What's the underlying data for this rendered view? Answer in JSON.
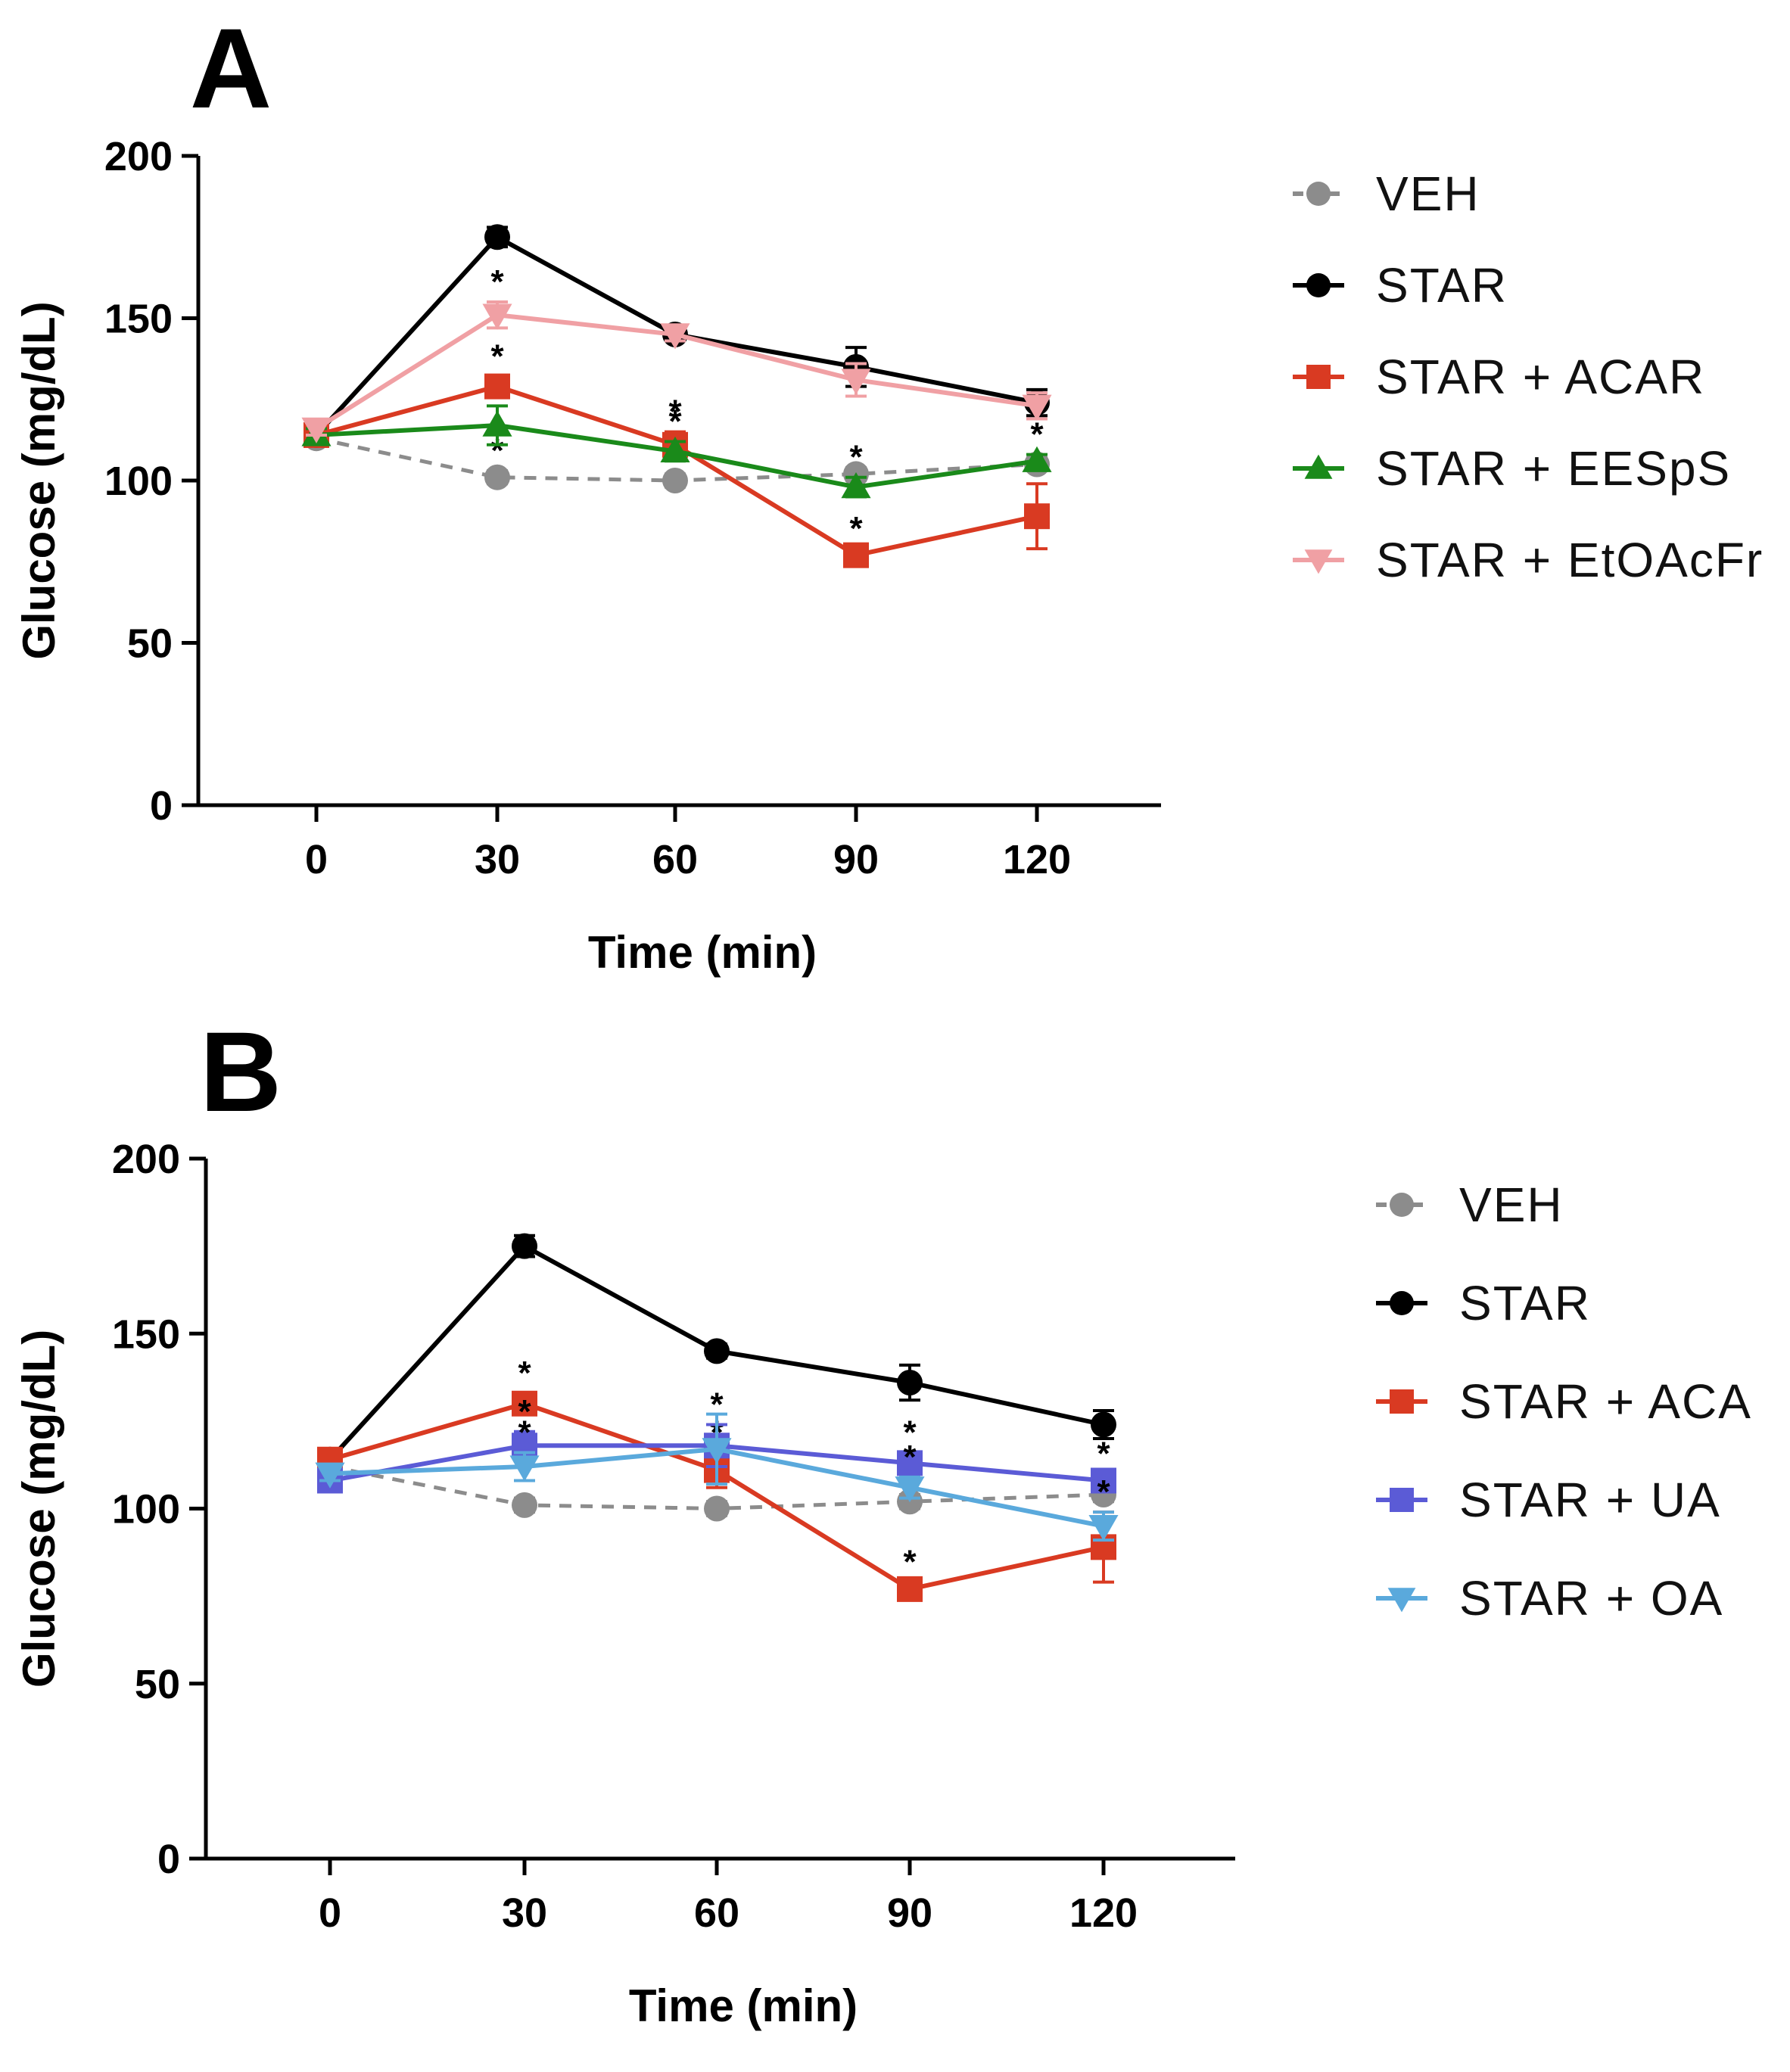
{
  "chart_data": [
    {
      "type": "line",
      "panel": "A",
      "xlabel": "Time (min)",
      "ylabel": "Glucose (mg/dL)",
      "x": [
        0,
        30,
        60,
        90,
        120
      ],
      "x_ticks": [
        "0",
        "30",
        "60",
        "90",
        "120"
      ],
      "ylim": [
        0,
        200
      ],
      "y_ticks": [
        "0",
        "50",
        "100",
        "150",
        "200"
      ],
      "legend_position": "right",
      "series": [
        {
          "name": "VEH",
          "color": "#8c8c8c",
          "marker": "circle",
          "dashed": true,
          "values": [
            113,
            101,
            100,
            102,
            105
          ],
          "errors": [
            2,
            2,
            2,
            2,
            2
          ],
          "stars": [
            false,
            true,
            false,
            false,
            false
          ]
        },
        {
          "name": "STAR",
          "color": "#000000",
          "marker": "circle",
          "dashed": false,
          "values": [
            114,
            175,
            145,
            135,
            124
          ],
          "errors": [
            2,
            3,
            2,
            6,
            4
          ],
          "stars": [
            false,
            false,
            false,
            false,
            false
          ]
        },
        {
          "name": "STAR + ACAR",
          "color": "#d93a22",
          "marker": "square",
          "dashed": false,
          "values": [
            114,
            129,
            111,
            77,
            89
          ],
          "errors": [
            2,
            3,
            4,
            2,
            10
          ],
          "stars": [
            false,
            true,
            true,
            true,
            true
          ]
        },
        {
          "name": "STAR + EESpS",
          "color": "#1a8a1a",
          "marker": "triangle-up",
          "dashed": false,
          "values": [
            114,
            117,
            109,
            98,
            106
          ],
          "errors": [
            2,
            6,
            3,
            3,
            2
          ],
          "stars": [
            false,
            false,
            true,
            true,
            true
          ]
        },
        {
          "name": "STAR + EtOAcFr",
          "color": "#f0a0a4",
          "marker": "triangle-down",
          "dashed": false,
          "values": [
            116,
            151,
            145,
            131,
            123
          ],
          "errors": [
            2,
            4,
            2,
            5,
            4
          ],
          "stars": [
            false,
            true,
            false,
            false,
            false
          ]
        }
      ]
    },
    {
      "type": "line",
      "panel": "B",
      "xlabel": "Time (min)",
      "ylabel": "Glucose (mg/dL)",
      "x": [
        0,
        30,
        60,
        90,
        120
      ],
      "x_ticks": [
        "0",
        "30",
        "60",
        "90",
        "120"
      ],
      "ylim": [
        0,
        200
      ],
      "y_ticks": [
        "0",
        "50",
        "100",
        "150",
        "200"
      ],
      "legend_position": "right",
      "series": [
        {
          "name": "VEH",
          "color": "#8c8c8c",
          "marker": "circle",
          "dashed": true,
          "values": [
            112,
            101,
            100,
            102,
            104
          ],
          "errors": [
            2,
            2,
            2,
            2,
            2
          ],
          "stars": [
            false,
            false,
            false,
            false,
            false
          ]
        },
        {
          "name": "STAR",
          "color": "#000000",
          "marker": "circle",
          "dashed": false,
          "values": [
            114,
            175,
            145,
            136,
            124
          ],
          "errors": [
            2,
            3,
            2,
            5,
            4
          ],
          "stars": [
            false,
            false,
            false,
            false,
            false
          ]
        },
        {
          "name": "STAR + ACA",
          "color": "#d93a22",
          "marker": "square",
          "dashed": false,
          "values": [
            114,
            130,
            111,
            77,
            89
          ],
          "errors": [
            2,
            3,
            5,
            2,
            10
          ],
          "stars": [
            false,
            true,
            true,
            true,
            true
          ]
        },
        {
          "name": "STAR + UA",
          "color": "#5b5bd6",
          "marker": "square",
          "dashed": false,
          "values": [
            108,
            118,
            118,
            113,
            108
          ],
          "errors": [
            2,
            4,
            6,
            3,
            2
          ],
          "stars": [
            false,
            true,
            true,
            true,
            true
          ]
        },
        {
          "name": "STAR + OA",
          "color": "#5aa9dc",
          "marker": "triangle-down",
          "dashed": false,
          "values": [
            110,
            112,
            117,
            106,
            95
          ],
          "errors": [
            2,
            4,
            10,
            3,
            4
          ],
          "stars": [
            false,
            true,
            false,
            true,
            true
          ]
        }
      ]
    }
  ],
  "sig_mark": "*"
}
